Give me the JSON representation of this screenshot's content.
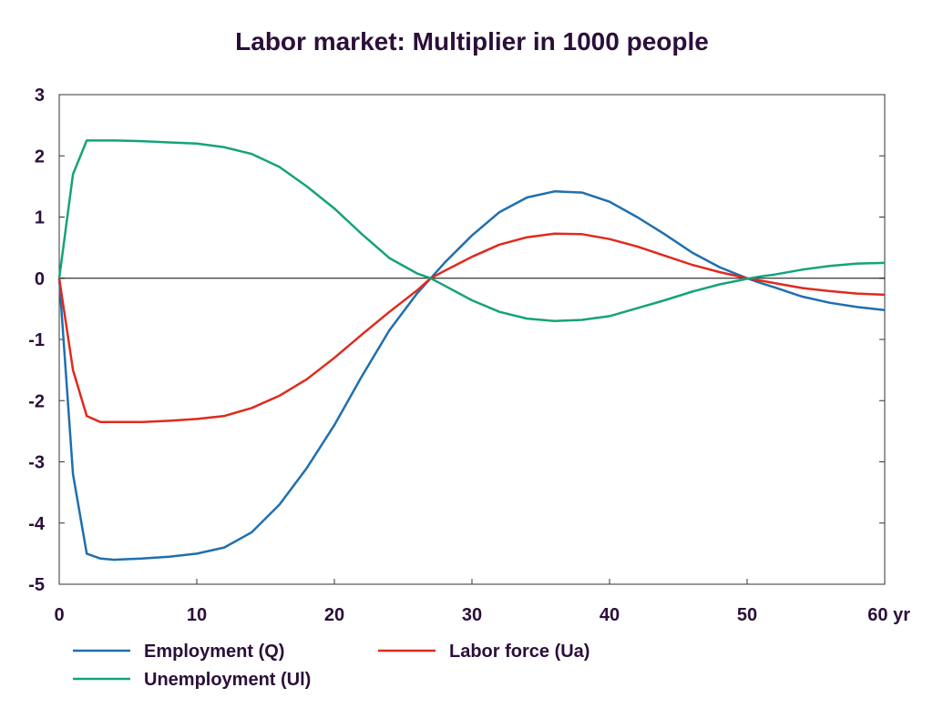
{
  "chart_data": {
    "type": "line",
    "title": "Labor market: Multiplier in 1000 people",
    "xlabel": "",
    "ylabel": "",
    "x_unit": "yr",
    "xlim": [
      0,
      60
    ],
    "ylim": [
      -5,
      3
    ],
    "xticks": [
      0,
      10,
      20,
      30,
      40,
      50,
      60
    ],
    "xtick_labels": [
      "0",
      "10",
      "20",
      "30",
      "40",
      "50",
      "60 yr"
    ],
    "yticks": [
      3,
      2,
      1,
      0,
      -1,
      -2,
      -3,
      -4,
      -5
    ],
    "ytick_labels": [
      "3",
      "2",
      "1",
      "0",
      "-1",
      "-2",
      "-3",
      "-4",
      "-5"
    ],
    "grid": false,
    "zero_line": true,
    "legend_position": "bottom",
    "x": [
      0,
      1,
      2,
      3,
      4,
      6,
      8,
      10,
      12,
      14,
      16,
      18,
      20,
      22,
      24,
      26,
      27,
      28,
      30,
      32,
      34,
      36,
      38,
      40,
      42,
      44,
      46,
      48,
      50,
      51,
      52,
      54,
      56,
      58,
      60
    ],
    "series": [
      {
        "name": "Employment (Q)",
        "color": "#1f6fae",
        "values": [
          0,
          -3.2,
          -4.5,
          -4.58,
          -4.6,
          -4.58,
          -4.55,
          -4.5,
          -4.4,
          -4.15,
          -3.7,
          -3.1,
          -2.4,
          -1.6,
          -0.85,
          -0.25,
          0,
          0.25,
          0.7,
          1.08,
          1.32,
          1.42,
          1.4,
          1.25,
          1.0,
          0.72,
          0.42,
          0.18,
          0,
          -0.08,
          -0.15,
          -0.3,
          -0.4,
          -0.47,
          -0.52
        ]
      },
      {
        "name": "Labor force (Ua)",
        "color": "#e02a1c",
        "values": [
          0,
          -1.5,
          -2.25,
          -2.35,
          -2.35,
          -2.35,
          -2.33,
          -2.3,
          -2.25,
          -2.12,
          -1.92,
          -1.65,
          -1.3,
          -0.92,
          -0.55,
          -0.2,
          0,
          0.12,
          0.35,
          0.55,
          0.67,
          0.73,
          0.72,
          0.64,
          0.52,
          0.37,
          0.22,
          0.1,
          0,
          -0.04,
          -0.08,
          -0.16,
          -0.21,
          -0.25,
          -0.27
        ]
      },
      {
        "name": "Unemployment (Ul)",
        "color": "#14a37a",
        "values": [
          0,
          1.7,
          2.25,
          2.25,
          2.25,
          2.24,
          2.22,
          2.2,
          2.14,
          2.03,
          1.82,
          1.5,
          1.14,
          0.72,
          0.33,
          0.08,
          0,
          -0.12,
          -0.36,
          -0.55,
          -0.66,
          -0.7,
          -0.68,
          -0.62,
          -0.49,
          -0.36,
          -0.22,
          -0.1,
          -0.01,
          0.03,
          0.06,
          0.14,
          0.2,
          0.24,
          0.25
        ]
      }
    ]
  }
}
